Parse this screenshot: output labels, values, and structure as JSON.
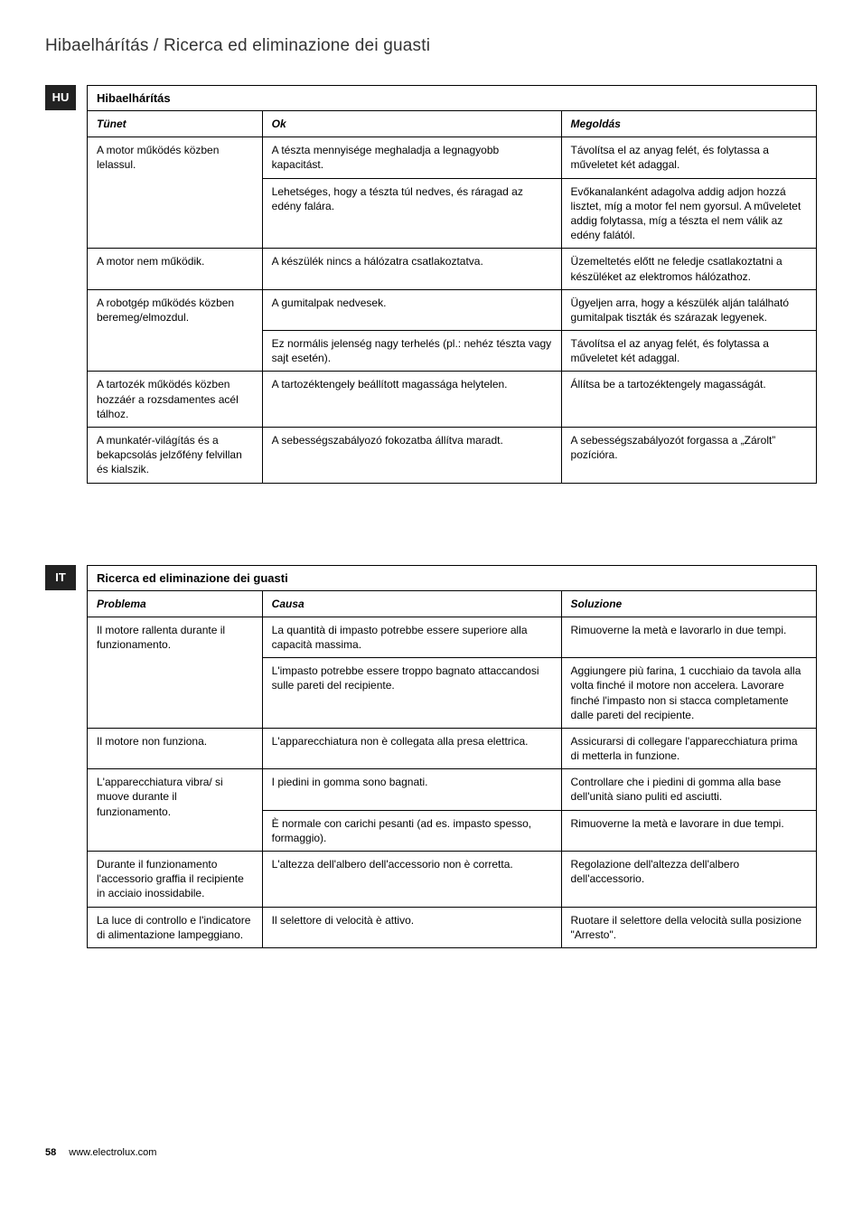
{
  "header": {
    "title_left": "Hibaelhárítás",
    "title_sep": "  /  ",
    "title_right": "Ricerca ed eliminazione dei guasti"
  },
  "hu": {
    "tag": "HU",
    "title": "Hibaelhárítás",
    "head": {
      "c1": "Tünet",
      "c2": "Ok",
      "c3": "Megoldás"
    },
    "rows": [
      {
        "c1": "A motor működés közben lelassul.",
        "c2": "A tészta mennyisége meghaladja a legnagyobb kapacitást.",
        "c3": "Távolítsa el az anyag felét, és folytassa a műveletet két adaggal.",
        "rowspan1": 2
      },
      {
        "c2": "Lehetséges, hogy a tészta túl nedves, és ráragad az edény falára.",
        "c3": "Evőkanalanként adagolva addig adjon hozzá lisztet, míg a motor fel nem gyorsul. A műveletet addig folytassa, míg a tészta el nem válik az edény falától."
      },
      {
        "c1": "A motor nem működik.",
        "c2": "A készülék nincs a hálózatra csatlakoztatva.",
        "c3": "Üzemeltetés előtt ne feledje csatlakoztatni a készüléket az elektromos hálózathoz."
      },
      {
        "c1": "A robotgép működés közben beremeg/elmozdul.",
        "c2": "A gumitalpak nedvesek.",
        "c3": "Ügyeljen arra, hogy a készülék alján található gumitalpak tiszták és szárazak legyenek.",
        "rowspan1": 2
      },
      {
        "c2": "Ez normális jelenség nagy terhelés (pl.: nehéz tészta vagy sajt esetén).",
        "c3": "Távolítsa el az anyag felét, és folytassa a műveletet két adaggal."
      },
      {
        "c1": "A tartozék működés közben hozzáér a rozsdamentes acél tálhoz.",
        "c2": "A tartozéktengely beállított magassága helytelen.",
        "c3": "Állítsa be a tartozéktengely magasságát."
      },
      {
        "c1": "A munkatér-világítás és a bekapcsolás jelzőfény felvillan és kialszik.",
        "c2": "A sebességszabályozó fokozatba állítva maradt.",
        "c3": "A sebességszabályozót forgassa a „Zárolt” pozícióra."
      }
    ]
  },
  "it": {
    "tag": "IT",
    "title": "Ricerca ed eliminazione dei guasti",
    "head": {
      "c1": "Problema",
      "c2": "Causa",
      "c3": "Soluzione"
    },
    "rows": [
      {
        "c1": "Il motore rallenta durante il funzionamento.",
        "c2": "La quantità di impasto potrebbe essere superiore alla capacità massima.",
        "c3": "Rimuoverne la metà e lavorarlo in due tempi.",
        "rowspan1": 2
      },
      {
        "c2": "L'impasto potrebbe essere troppo bagnato attaccandosi sulle pareti del recipiente.",
        "c3": "Aggiungere più farina, 1 cucchiaio da tavola alla volta finché il motore non accelera. Lavorare finché l'impasto non si stacca completamente dalle pareti del recipiente."
      },
      {
        "c1": "Il motore non funziona.",
        "c2": "L'apparecchiatura non è collegata alla presa elettrica.",
        "c3": "Assicurarsi di collegare l'apparecchiatura prima di metterla in funzione."
      },
      {
        "c1": "L'apparecchiatura vibra/ si muove durante il funzionamento.",
        "c2": "I piedini in gomma sono bagnati.",
        "c3": "Controllare che i piedini di gomma alla base dell'unità siano puliti ed asciutti.",
        "rowspan1": 2
      },
      {
        "c2": "È normale con carichi pesanti (ad es. impasto spesso, formaggio).",
        "c3": "Rimuoverne la metà e lavorare in due tempi."
      },
      {
        "c1": "Durante il funzionamento l'accessorio graffia il recipiente in acciaio inossidabile.",
        "c2": "L'altezza dell'albero dell'accessorio non è corretta.",
        "c3": "Regolazione dell'altezza dell'albero dell'accessorio."
      },
      {
        "c1": "La luce di controllo e l'indicatore di alimentazione lampeggiano.",
        "c2": "Il selettore di velocità è attivo.",
        "c3": "Ruotare il selettore della velocità sulla posizione \"Arresto\"."
      }
    ]
  },
  "footer": {
    "page": "58",
    "url": "www.electrolux.com"
  }
}
